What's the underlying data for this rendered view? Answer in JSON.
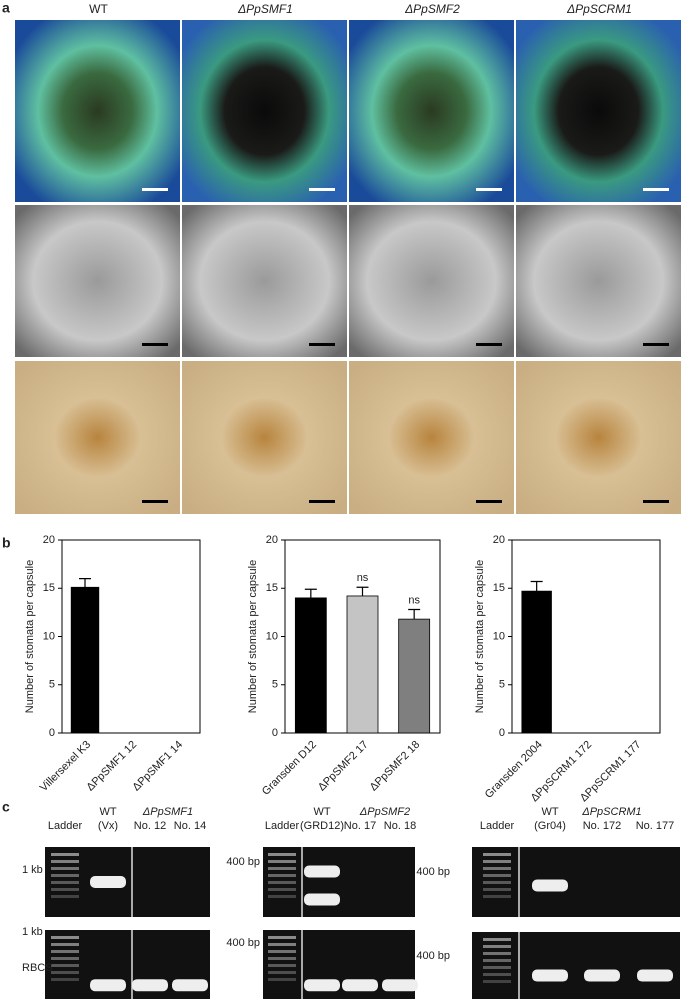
{
  "panel_labels": [
    "a",
    "b",
    "c"
  ],
  "columns": [
    "WT",
    "ΔPpSMF1",
    "ΔPpSMF2",
    "ΔPpSCRM1"
  ],
  "chart_data": [
    {
      "type": "bar",
      "ylabel": "Number of stomata per capsule",
      "categories": [
        "Villersexel K3",
        "ΔPpSMF1 12",
        "ΔPpSMF1 14"
      ],
      "values": [
        15.1,
        0,
        0
      ],
      "errors": [
        0.9,
        0,
        0
      ],
      "colors": [
        "#000000",
        "#000000",
        "#000000"
      ],
      "ylim": [
        0,
        20
      ],
      "yticks": [
        0,
        5,
        10,
        15,
        20
      ]
    },
    {
      "type": "bar",
      "ylabel": "Number of stomata per capsule",
      "categories": [
        "Gransden D12",
        "ΔPpSMF2 17",
        "ΔPpSMF2 18"
      ],
      "values": [
        14.0,
        14.2,
        11.8
      ],
      "errors": [
        0.9,
        0.9,
        1.0
      ],
      "value_annotations": [
        null,
        "ns",
        "ns"
      ],
      "colors": [
        "#000000",
        "#c4c4c4",
        "#7f7f7f"
      ],
      "ylim": [
        0,
        20
      ],
      "yticks": [
        0,
        5,
        10,
        15,
        20
      ]
    },
    {
      "type": "bar",
      "ylabel": "Number of stomata per capsule",
      "categories": [
        "Gransden 2004",
        "ΔPpSCRM1 172",
        "ΔPpSCRM1 177"
      ],
      "values": [
        14.7,
        0,
        0
      ],
      "errors": [
        1.0,
        0,
        0
      ],
      "colors": [
        "#000000",
        "#000000",
        "#000000"
      ],
      "ylim": [
        0,
        20
      ],
      "yticks": [
        0,
        5,
        10,
        15,
        20
      ]
    }
  ],
  "gels": [
    {
      "top_labels": [
        "Ladder",
        "WT",
        "(Vx)",
        "ΔPpSMF1",
        "No. 12",
        "No. 14"
      ],
      "side_labels": [
        "1 kb",
        "1 kb",
        "RBCS"
      ]
    },
    {
      "top_labels": [
        "Ladder",
        "WT",
        "(GRD12)",
        "ΔPpSMF2",
        "No. 17",
        "No. 18"
      ],
      "side_labels": [
        "400 bp",
        "400 bp"
      ]
    },
    {
      "top_labels": [
        "Ladder",
        "WT",
        "(Gr04)",
        "ΔPpSCRM1",
        "No. 172",
        "No. 177"
      ],
      "side_labels": [
        "400 bp",
        "400 bp"
      ]
    }
  ]
}
